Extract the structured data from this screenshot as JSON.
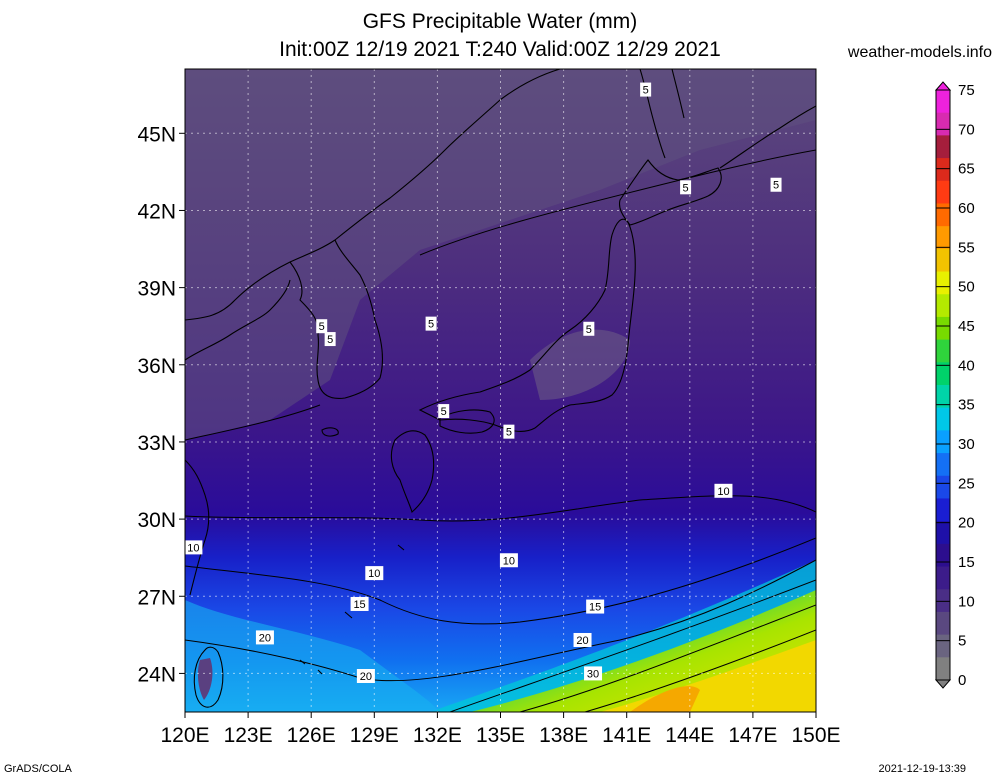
{
  "title_line1": "GFS Precipitable Water (mm)",
  "title_line2": "Init:00Z 12/19 2021 T:240 Valid:00Z 12/29 2021",
  "site": "weather-models.info",
  "footer_left": "GrADS/COLA",
  "footer_right": "2021-12-19-13:39",
  "map": {
    "lon_range": [
      120,
      150
    ],
    "lat_range": [
      22.5,
      47.5
    ],
    "lat_ticks": [
      "45N",
      "42N",
      "39N",
      "36N",
      "33N",
      "30N",
      "27N",
      "24N"
    ],
    "lat_values": [
      45,
      42,
      39,
      36,
      33,
      30,
      27,
      24
    ],
    "lon_ticks": [
      "120E",
      "123E",
      "126E",
      "129E",
      "132E",
      "135E",
      "138E",
      "141E",
      "144E",
      "147E",
      "150E"
    ],
    "lon_values": [
      120,
      123,
      126,
      129,
      132,
      135,
      138,
      141,
      144,
      147,
      150
    ],
    "grid": "dotted",
    "contour_labels": [
      {
        "text": "5",
        "lon": 141.9,
        "lat": 46.7
      },
      {
        "text": "5",
        "lon": 143.8,
        "lat": 42.9
      },
      {
        "text": "5",
        "lon": 148.1,
        "lat": 43.0
      },
      {
        "text": "5",
        "lon": 126.5,
        "lat": 37.5
      },
      {
        "text": "5",
        "lon": 126.9,
        "lat": 37.0
      },
      {
        "text": "5",
        "lon": 131.7,
        "lat": 37.6
      },
      {
        "text": "5",
        "lon": 139.2,
        "lat": 37.4
      },
      {
        "text": "5",
        "lon": 132.3,
        "lat": 34.2
      },
      {
        "text": "5",
        "lon": 135.4,
        "lat": 33.4
      },
      {
        "text": "10",
        "lon": 145.6,
        "lat": 31.1
      },
      {
        "text": "10",
        "lon": 120.4,
        "lat": 28.9
      },
      {
        "text": "10",
        "lon": 129.0,
        "lat": 27.9
      },
      {
        "text": "10",
        "lon": 135.4,
        "lat": 28.4
      },
      {
        "text": "15",
        "lon": 128.3,
        "lat": 26.7
      },
      {
        "text": "15",
        "lon": 139.5,
        "lat": 26.6
      },
      {
        "text": "20",
        "lon": 123.8,
        "lat": 25.4
      },
      {
        "text": "20",
        "lon": 138.9,
        "lat": 25.3
      },
      {
        "text": "20",
        "lon": 128.6,
        "lat": 23.9
      },
      {
        "text": "30",
        "lon": 139.4,
        "lat": 24.0
      }
    ]
  },
  "colorbar": {
    "labels": [
      "75",
      "70",
      "65",
      "60",
      "55",
      "50",
      "45",
      "40",
      "35",
      "30",
      "25",
      "20",
      "15",
      "10",
      "5",
      "0"
    ],
    "colors": [
      "#ee22dd",
      "#d82bb0",
      "#a51e3c",
      "#dc2a1c",
      "#ff3b13",
      "#ff6a00",
      "#ff9a00",
      "#f2c300",
      "#e8f000",
      "#b4ea00",
      "#78da00",
      "#2fd43c",
      "#00d26a",
      "#00d4a8",
      "#00c8e8",
      "#0aa0ff",
      "#1470f5",
      "#1a48e8",
      "#1a1ed2",
      "#1e10a8",
      "#2c0e8e",
      "#3c1c8a",
      "#4a2e86",
      "#5a4880",
      "#6a6480",
      "#808080"
    ]
  }
}
